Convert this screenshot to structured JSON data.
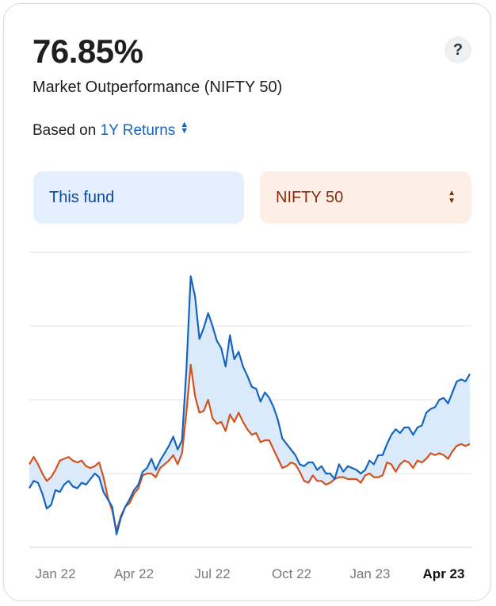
{
  "header": {
    "value": "76.85%",
    "subtitle": "Market Outperformance (NIFTY 50)",
    "help_icon": "?"
  },
  "returns": {
    "prefix": "Based on",
    "selected": "1Y Returns"
  },
  "toggles": {
    "fund_label": "This fund",
    "benchmark_label": "NIFTY 50"
  },
  "colors": {
    "fund": "#1565c0",
    "benchmark": "#d4521f",
    "fill": "#dbeafb",
    "grid": "#e5e5e5"
  },
  "chart_data": {
    "type": "line",
    "x_tick_labels": [
      "Jan 22",
      "Apr 22",
      "Jul 22",
      "Oct 22",
      "Jan 23",
      "Apr 23"
    ],
    "active_tick": "Apr 23",
    "grid": true,
    "series": [
      {
        "name": "This fund",
        "key": "fund",
        "values": [
          32,
          36,
          35,
          29,
          21,
          23,
          31,
          30,
          34,
          36,
          33,
          32,
          35,
          34,
          37,
          40,
          38,
          30,
          26,
          22,
          7,
          16,
          22,
          26,
          31,
          34,
          41,
          43,
          48,
          42,
          47,
          51,
          55,
          60,
          53,
          58,
          96,
          147,
          136,
          113,
          119,
          127,
          120,
          112,
          108,
          98,
          115,
          102,
          106,
          98,
          93,
          87,
          86,
          79,
          84,
          81,
          76,
          69,
          59,
          56,
          53,
          50,
          45,
          44,
          46,
          46,
          42,
          44,
          40,
          40,
          37,
          45,
          41,
          44,
          43,
          42,
          40,
          42,
          47,
          45,
          50,
          50,
          56,
          61,
          64,
          62,
          65,
          65,
          61,
          65,
          66,
          73,
          75,
          76,
          80,
          81,
          78,
          84,
          90,
          91,
          90,
          94
        ]
      },
      {
        "name": "NIFTY 50",
        "key": "benchmark",
        "values": [
          45,
          49,
          45,
          40,
          36,
          38,
          42,
          47,
          48,
          49,
          47,
          46,
          47,
          44,
          43,
          44,
          46,
          38,
          27,
          20,
          9,
          17,
          22,
          24,
          29,
          32,
          39,
          40,
          40,
          38,
          43,
          45,
          47,
          50,
          45,
          51,
          73,
          99,
          82,
          73,
          74,
          80,
          70,
          67,
          68,
          63,
          72,
          68,
          73,
          68,
          64,
          61,
          62,
          57,
          58,
          58,
          53,
          48,
          43,
          44,
          46,
          45,
          41,
          36,
          35,
          39,
          36,
          36,
          34,
          35,
          37,
          38,
          38,
          37,
          37,
          37,
          35,
          39,
          40,
          38,
          38,
          39,
          46,
          45,
          41,
          45,
          47,
          46,
          43,
          47,
          46,
          48,
          51,
          50,
          51,
          50,
          48,
          52,
          55,
          56,
          55,
          56
        ]
      }
    ]
  }
}
